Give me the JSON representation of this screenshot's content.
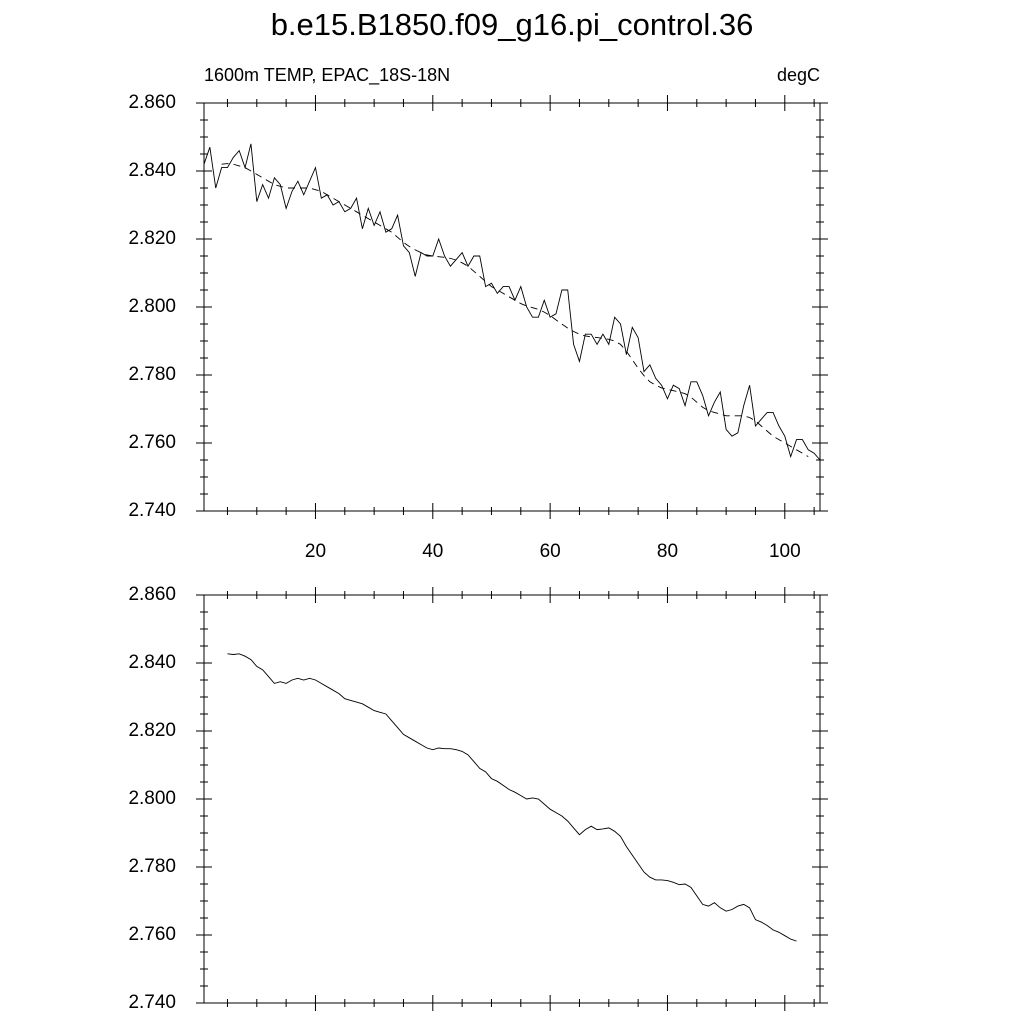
{
  "chart_data": [
    {
      "type": "line",
      "title": "b.e15.B1850.f09_g16.pi_control.36",
      "left_label": "1600m TEMP, EPAC_18S-18N",
      "right_label": "degC",
      "x": [
        1,
        2,
        3,
        4,
        5,
        6,
        7,
        8,
        9,
        10,
        11,
        12,
        13,
        14,
        15,
        16,
        17,
        18,
        19,
        20,
        21,
        22,
        23,
        24,
        25,
        26,
        27,
        28,
        29,
        30,
        31,
        32,
        33,
        34,
        35,
        36,
        37,
        38,
        39,
        40,
        41,
        42,
        43,
        44,
        45,
        46,
        47,
        48,
        49,
        50,
        51,
        52,
        53,
        54,
        55,
        56,
        57,
        58,
        59,
        60,
        61,
        62,
        63,
        64,
        65,
        66,
        67,
        68,
        69,
        70,
        71,
        72,
        73,
        74,
        75,
        76,
        77,
        78,
        79,
        80,
        81,
        82,
        83,
        84,
        85,
        86,
        87,
        88,
        89,
        90,
        91,
        92,
        93,
        94,
        95,
        96,
        97,
        98,
        99,
        100,
        101,
        102,
        103,
        104,
        105,
        106
      ],
      "series": [
        {
          "color": "#000000",
          "dash": false,
          "values": [
            2.842,
            2.847,
            2.835,
            2.841,
            2.841,
            2.844,
            2.846,
            2.841,
            2.848,
            2.831,
            2.836,
            2.832,
            2.838,
            2.836,
            2.829,
            2.834,
            2.837,
            2.833,
            2.837,
            2.841,
            2.832,
            2.833,
            2.83,
            2.831,
            2.828,
            2.829,
            2.832,
            2.823,
            2.829,
            2.824,
            2.828,
            2.822,
            2.823,
            2.827,
            2.818,
            2.816,
            2.809,
            2.816,
            2.815,
            2.815,
            2.82,
            2.815,
            2.812,
            2.814,
            2.816,
            2.812,
            2.815,
            2.815,
            2.806,
            2.807,
            2.804,
            2.806,
            2.806,
            2.802,
            2.806,
            2.8,
            2.797,
            2.797,
            2.802,
            2.797,
            2.798,
            2.805,
            2.805,
            2.789,
            2.784,
            2.792,
            2.792,
            2.789,
            2.792,
            2.789,
            2.797,
            2.795,
            2.786,
            2.794,
            2.791,
            2.781,
            2.783,
            2.779,
            2.777,
            2.773,
            2.777,
            2.776,
            2.771,
            2.778,
            2.778,
            2.774,
            2.768,
            2.772,
            2.775,
            2.764,
            2.762,
            2.763,
            2.771,
            2.777,
            2.765,
            2.767,
            2.769,
            2.769,
            2.765,
            2.762,
            2.756,
            2.761,
            2.761,
            2.758,
            2.757,
            2.755
          ]
        },
        {
          "color": "#000000",
          "dash": true,
          "values": [
            null,
            null,
            null,
            2.842,
            2.8422,
            2.842,
            2.8415,
            2.841,
            2.84,
            2.839,
            2.838,
            2.837,
            2.836,
            2.8355,
            2.835,
            2.835,
            2.835,
            2.835,
            2.835,
            2.8345,
            2.834,
            2.833,
            2.832,
            2.831,
            2.83,
            2.829,
            2.828,
            2.827,
            2.826,
            2.825,
            2.824,
            2.823,
            2.822,
            2.8205,
            2.819,
            2.8178,
            2.8168,
            2.816,
            2.8153,
            2.815,
            2.8148,
            2.8146,
            2.8143,
            2.8138,
            2.813,
            2.812,
            2.8105,
            2.809,
            2.8075,
            2.806,
            2.805,
            2.804,
            2.803,
            2.802,
            2.801,
            2.8003,
            2.7998,
            2.7993,
            2.7985,
            2.7975,
            2.7962,
            2.795,
            2.7938,
            2.7928,
            2.792,
            2.7915,
            2.7912,
            2.791,
            2.7908,
            2.7905,
            2.79,
            2.789,
            2.787,
            2.7845,
            2.782,
            2.7798,
            2.778,
            2.777,
            2.7762,
            2.7758,
            2.7754,
            2.775,
            2.7745,
            2.7735,
            2.772,
            2.7705,
            2.7695,
            2.769,
            2.7685,
            2.768,
            2.768,
            2.768,
            2.768,
            2.7675,
            2.7665,
            2.765,
            2.7635,
            2.762,
            2.761,
            2.76,
            2.759,
            2.758,
            2.757,
            2.756,
            null,
            null
          ]
        }
      ],
      "xlim": [
        1,
        106
      ],
      "xticks": [
        20,
        40,
        60,
        80,
        100
      ],
      "xminorticks": [
        5,
        10,
        15,
        25,
        30,
        35,
        45,
        50,
        55,
        65,
        70,
        75,
        85,
        90,
        95,
        105
      ],
      "ylim": [
        2.74,
        2.86
      ],
      "yticks": [
        {
          "value": 2.74,
          "label": "2.740"
        },
        {
          "value": 2.76,
          "label": "2.760"
        },
        {
          "value": 2.78,
          "label": "2.780"
        },
        {
          "value": 2.8,
          "label": "2.800"
        },
        {
          "value": 2.82,
          "label": "2.820"
        },
        {
          "value": 2.84,
          "label": "2.840"
        },
        {
          "value": 2.86,
          "label": "2.860"
        }
      ],
      "yminorticks": [
        2.745,
        2.75,
        2.755,
        2.765,
        2.77,
        2.775,
        2.785,
        2.79,
        2.795,
        2.805,
        2.81,
        2.815,
        2.825,
        2.83,
        2.835,
        2.845,
        2.85,
        2.855
      ]
    },
    {
      "type": "line",
      "x": [
        1,
        2,
        3,
        4,
        5,
        6,
        7,
        8,
        9,
        10,
        11,
        12,
        13,
        14,
        15,
        16,
        17,
        18,
        19,
        20,
        21,
        22,
        23,
        24,
        25,
        26,
        27,
        28,
        29,
        30,
        31,
        32,
        33,
        34,
        35,
        36,
        37,
        38,
        39,
        40,
        41,
        42,
        43,
        44,
        45,
        46,
        47,
        48,
        49,
        50,
        51,
        52,
        53,
        54,
        55,
        56,
        57,
        58,
        59,
        60,
        61,
        62,
        63,
        64,
        65,
        66,
        67,
        68,
        69,
        70,
        71,
        72,
        73,
        74,
        75,
        76,
        77,
        78,
        79,
        80,
        81,
        82,
        83,
        84,
        85,
        86,
        87,
        88,
        89,
        90,
        91,
        92,
        93,
        94,
        95,
        96,
        97,
        98,
        99,
        100,
        101,
        102,
        103,
        104,
        105,
        106
      ],
      "series": [
        {
          "color": "#000000",
          "dash": false,
          "values": [
            null,
            null,
            null,
            null,
            2.8427,
            2.8425,
            2.8427,
            2.842,
            2.841,
            2.839,
            2.838,
            2.836,
            2.834,
            2.8345,
            2.834,
            2.835,
            2.8355,
            2.835,
            2.8355,
            2.835,
            2.834,
            2.833,
            2.832,
            2.831,
            2.8295,
            2.829,
            2.8285,
            2.828,
            2.827,
            2.826,
            2.8255,
            2.825,
            2.823,
            2.821,
            2.819,
            2.818,
            2.817,
            2.816,
            2.815,
            2.8145,
            2.815,
            2.8148,
            2.8148,
            2.8145,
            2.814,
            2.813,
            2.811,
            2.809,
            2.808,
            2.806,
            2.8052,
            2.804,
            2.8028,
            2.802,
            2.801,
            2.8,
            2.8003,
            2.8,
            2.7985,
            2.797,
            2.796,
            2.795,
            2.7935,
            2.7915,
            2.7895,
            2.791,
            2.792,
            2.791,
            2.7912,
            2.7915,
            2.7905,
            2.789,
            2.786,
            2.7835,
            2.781,
            2.7785,
            2.777,
            2.7762,
            2.7762,
            2.776,
            2.7755,
            2.7748,
            2.775,
            2.774,
            2.7715,
            2.769,
            2.7685,
            2.7695,
            2.768,
            2.767,
            2.7675,
            2.7685,
            2.769,
            2.768,
            2.7645,
            2.7638,
            2.7628,
            2.7615,
            2.7608,
            2.7598,
            2.7588,
            2.7582,
            null,
            null,
            null,
            null
          ]
        }
      ],
      "xlim": [
        1,
        106
      ],
      "xticks": [
        20,
        40,
        60,
        80,
        100
      ],
      "xminorticks": [
        5,
        10,
        15,
        25,
        30,
        35,
        45,
        50,
        55,
        65,
        70,
        75,
        85,
        90,
        95,
        105
      ],
      "ylim": [
        2.74,
        2.86
      ],
      "yticks": [
        {
          "value": 2.74,
          "label": "2.740"
        },
        {
          "value": 2.76,
          "label": "2.760"
        },
        {
          "value": 2.78,
          "label": "2.780"
        },
        {
          "value": 2.8,
          "label": "2.800"
        },
        {
          "value": 2.82,
          "label": "2.820"
        },
        {
          "value": 2.84,
          "label": "2.840"
        },
        {
          "value": 2.86,
          "label": "2.860"
        }
      ],
      "yminorticks": [
        2.745,
        2.75,
        2.755,
        2.765,
        2.77,
        2.775,
        2.785,
        2.79,
        2.795,
        2.805,
        2.81,
        2.815,
        2.825,
        2.83,
        2.835,
        2.845,
        2.85,
        2.855
      ]
    }
  ]
}
